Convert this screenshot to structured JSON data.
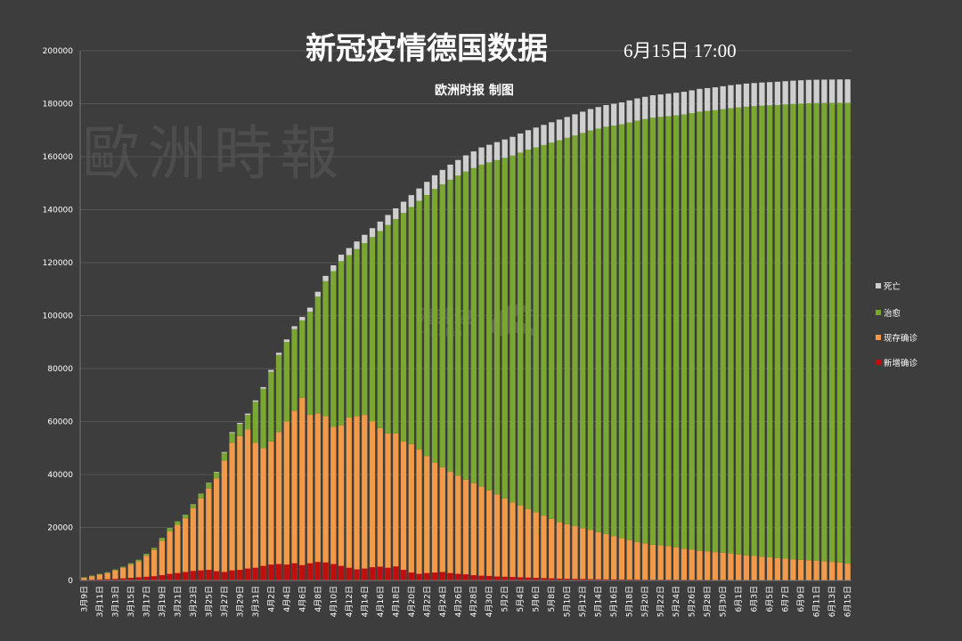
{
  "chart_data": {
    "type": "bar",
    "stacked": true,
    "title": "新冠疫情德国数据",
    "date_stamp": "6月15日 17:00",
    "subtitle": "欧洲时报 制图",
    "watermarks": [
      "歐洲時報",
      "海邦边",
      "Hinabian"
    ],
    "ylim": [
      0,
      200000
    ],
    "yticks": [
      0,
      20000,
      40000,
      60000,
      80000,
      100000,
      120000,
      140000,
      160000,
      180000,
      200000
    ],
    "legend_position": "right",
    "grid": true,
    "colors": {
      "death": "#cfcfcf",
      "recovered": "#7aa632",
      "active": "#f09a4a",
      "new": "#c00d0d",
      "background": "#3d3d3d",
      "grid": "#555555"
    },
    "start_month": 3,
    "start_day": 9,
    "num_days": 99,
    "label_every": 2,
    "series_names": [
      "死亡",
      "治愈",
      "现存确诊",
      "新增确诊"
    ],
    "total_keypoints": [
      [
        0,
        1200
      ],
      [
        3,
        3100
      ],
      [
        5,
        5200
      ],
      [
        7,
        7800
      ],
      [
        9,
        12300
      ],
      [
        11,
        19800
      ],
      [
        13,
        24800
      ],
      [
        15,
        32800
      ],
      [
        17,
        41000
      ],
      [
        19,
        56000
      ],
      [
        21,
        63000
      ],
      [
        23,
        73000
      ],
      [
        25,
        86000
      ],
      [
        27,
        96000
      ],
      [
        29,
        103000
      ],
      [
        31,
        115000
      ],
      [
        33,
        123000
      ],
      [
        35,
        128000
      ],
      [
        37,
        133000
      ],
      [
        39,
        138000
      ],
      [
        41,
        143000
      ],
      [
        43,
        148000
      ],
      [
        45,
        153000
      ],
      [
        47,
        157000
      ],
      [
        49,
        160500
      ],
      [
        51,
        163500
      ],
      [
        53,
        165500
      ],
      [
        55,
        167500
      ],
      [
        57,
        170000
      ],
      [
        59,
        172000
      ],
      [
        61,
        174000
      ],
      [
        63,
        176000
      ],
      [
        65,
        178000
      ],
      [
        67,
        179500
      ],
      [
        69,
        180500
      ],
      [
        71,
        182000
      ],
      [
        73,
        183200
      ],
      [
        75,
        183800
      ],
      [
        77,
        184500
      ],
      [
        79,
        185600
      ],
      [
        81,
        186200
      ],
      [
        83,
        187000
      ],
      [
        85,
        187600
      ],
      [
        87,
        188000
      ],
      [
        89,
        188300
      ],
      [
        91,
        188700
      ],
      [
        93,
        189000
      ],
      [
        95,
        189100
      ],
      [
        98,
        189200
      ]
    ],
    "active_keypoints": [
      [
        0,
        1000
      ],
      [
        3,
        2800
      ],
      [
        5,
        4800
      ],
      [
        7,
        7200
      ],
      [
        9,
        11500
      ],
      [
        11,
        18500
      ],
      [
        13,
        23500
      ],
      [
        15,
        31000
      ],
      [
        17,
        38500
      ],
      [
        19,
        52000
      ],
      [
        21,
        57000
      ],
      [
        22,
        52000
      ],
      [
        23,
        50000
      ],
      [
        24,
        52500
      ],
      [
        25,
        56000
      ],
      [
        26,
        60000
      ],
      [
        27,
        64000
      ],
      [
        28,
        69000
      ],
      [
        29,
        62500
      ],
      [
        30,
        63000
      ],
      [
        31,
        62000
      ],
      [
        32,
        58000
      ],
      [
        33,
        58500
      ],
      [
        34,
        61500
      ],
      [
        35,
        62000
      ],
      [
        36,
        62500
      ],
      [
        37,
        60000
      ],
      [
        38,
        57500
      ],
      [
        39,
        55500
      ],
      [
        40,
        55500
      ],
      [
        41,
        52500
      ],
      [
        42,
        51500
      ],
      [
        43,
        49500
      ],
      [
        45,
        44500
      ],
      [
        47,
        41000
      ],
      [
        49,
        38000
      ],
      [
        51,
        35500
      ],
      [
        53,
        32500
      ],
      [
        55,
        29500
      ],
      [
        57,
        27000
      ],
      [
        59,
        24500
      ],
      [
        61,
        22000
      ],
      [
        63,
        20500
      ],
      [
        65,
        19000
      ],
      [
        67,
        17500
      ],
      [
        69,
        16000
      ],
      [
        71,
        14500
      ],
      [
        73,
        13500
      ],
      [
        75,
        13000
      ],
      [
        77,
        12000
      ],
      [
        79,
        11200
      ],
      [
        81,
        10700
      ],
      [
        83,
        10200
      ],
      [
        85,
        9500
      ],
      [
        87,
        9000
      ],
      [
        89,
        8500
      ],
      [
        91,
        8000
      ],
      [
        93,
        7600
      ],
      [
        95,
        7200
      ],
      [
        97,
        6800
      ],
      [
        98,
        6400
      ]
    ],
    "new_values": [
      200,
      300,
      400,
      500,
      600,
      800,
      1000,
      1200,
      1400,
      1600,
      2000,
      2500,
      2800,
      3200,
      3600,
      3800,
      4000,
      3500,
      3200,
      3800,
      4000,
      4500,
      4800,
      5500,
      6000,
      6200,
      6000,
      6500,
      5800,
      6500,
      7000,
      6800,
      6200,
      5500,
      4800,
      4200,
      4500,
      5000,
      5200,
      4800,
      5300,
      4000,
      3000,
      2500,
      2800,
      3000,
      3200,
      2800,
      2500,
      2300,
      2000,
      1800,
      1700,
      1500,
      1400,
      1300,
      1200,
      1100,
      1000,
      900,
      800,
      700,
      650,
      600,
      550,
      500,
      450,
      420,
      400,
      380,
      350,
      330,
      300,
      290,
      280,
      270,
      260,
      250,
      240,
      230,
      220,
      210,
      200,
      190,
      180,
      175,
      170,
      165,
      160,
      155,
      150,
      145,
      140,
      135,
      130,
      125,
      120,
      115,
      110
    ],
    "death_keypoints": [
      [
        0,
        0
      ],
      [
        15,
        100
      ],
      [
        23,
        600
      ],
      [
        27,
        1100
      ],
      [
        31,
        2000
      ],
      [
        35,
        2900
      ],
      [
        39,
        3800
      ],
      [
        43,
        4700
      ],
      [
        47,
        5700
      ],
      [
        51,
        6500
      ],
      [
        55,
        7100
      ],
      [
        59,
        7600
      ],
      [
        63,
        8000
      ],
      [
        67,
        8200
      ],
      [
        71,
        8400
      ],
      [
        75,
        8500
      ],
      [
        79,
        8600
      ],
      [
        83,
        8700
      ],
      [
        87,
        8750
      ],
      [
        91,
        8800
      ],
      [
        98,
        8850
      ]
    ]
  }
}
